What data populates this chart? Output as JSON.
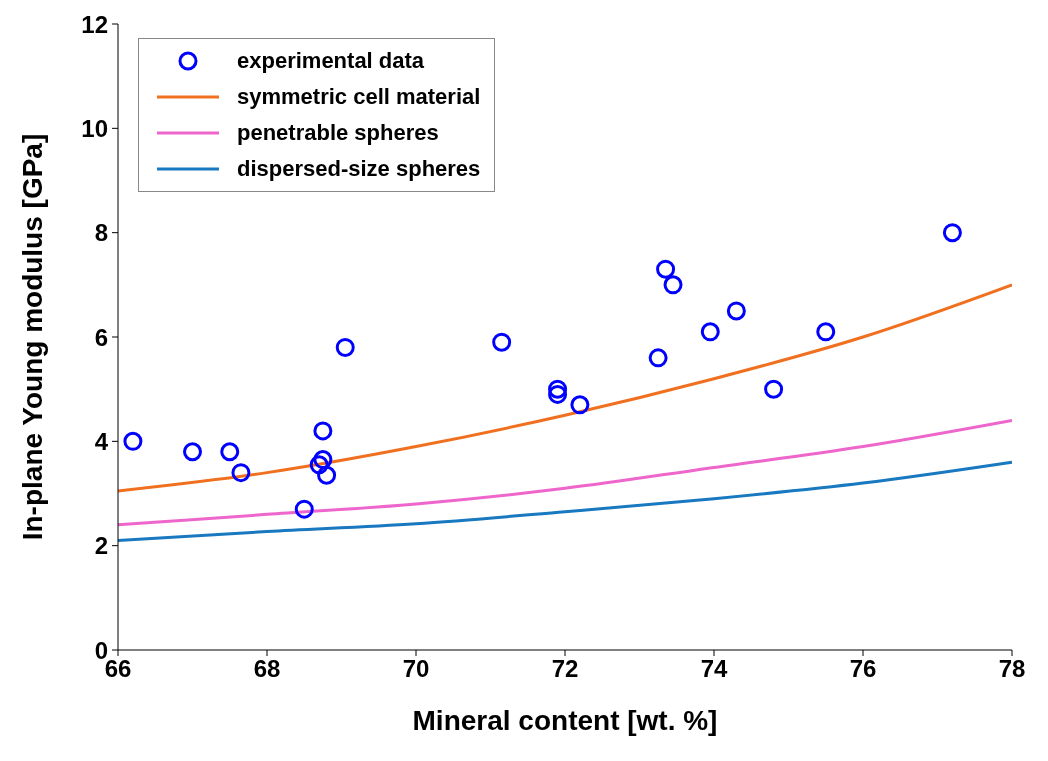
{
  "chart_data": {
    "type": "scatter",
    "xlabel": "Mineral content [wt. %]",
    "ylabel": "In-plane Young modulus [GPa]",
    "xlim": [
      66,
      78
    ],
    "xticks": [
      66,
      68,
      70,
      72,
      74,
      76,
      78
    ],
    "ylim": [
      0,
      12
    ],
    "yticks": [
      0,
      2,
      4,
      6,
      8,
      10,
      12
    ],
    "grid": false,
    "legend": "top left",
    "series": [
      {
        "name": "experimental data",
        "marker": "circle",
        "color": "#0000ff",
        "x": [
          66.2,
          67.0,
          67.5,
          67.65,
          68.5,
          68.7,
          68.75,
          68.75,
          68.8,
          69.05,
          71.15,
          71.9,
          71.9,
          72.2,
          73.25,
          73.35,
          73.45,
          73.95,
          74.3,
          74.8,
          75.5,
          77.2
        ],
        "values": [
          4.0,
          3.8,
          3.8,
          3.4,
          2.7,
          3.55,
          3.65,
          4.2,
          3.35,
          5.8,
          5.9,
          5.0,
          4.9,
          4.7,
          5.6,
          7.3,
          7.0,
          6.1,
          6.5,
          5.0,
          6.1,
          8.0
        ]
      },
      {
        "name": "symmetric cell material",
        "type": "line",
        "marker": "none",
        "color": "#f07020",
        "x": [
          66,
          68,
          70,
          72,
          74,
          76,
          78
        ],
        "values": [
          3.05,
          3.4,
          3.9,
          4.5,
          5.2,
          6.0,
          7.0
        ]
      },
      {
        "name": "penetrable spheres",
        "type": "line",
        "marker": "none",
        "color": "#ee66cc",
        "x": [
          66,
          68,
          70,
          72,
          74,
          76,
          78
        ],
        "values": [
          2.4,
          2.6,
          2.8,
          3.1,
          3.5,
          3.9,
          4.4
        ]
      },
      {
        "name": "dispersed-size spheres",
        "type": "line",
        "marker": "none",
        "color": "#1878c0",
        "x": [
          66,
          68,
          70,
          72,
          74,
          76,
          78
        ],
        "values": [
          2.1,
          2.27,
          2.42,
          2.65,
          2.9,
          3.2,
          3.6
        ]
      }
    ]
  }
}
